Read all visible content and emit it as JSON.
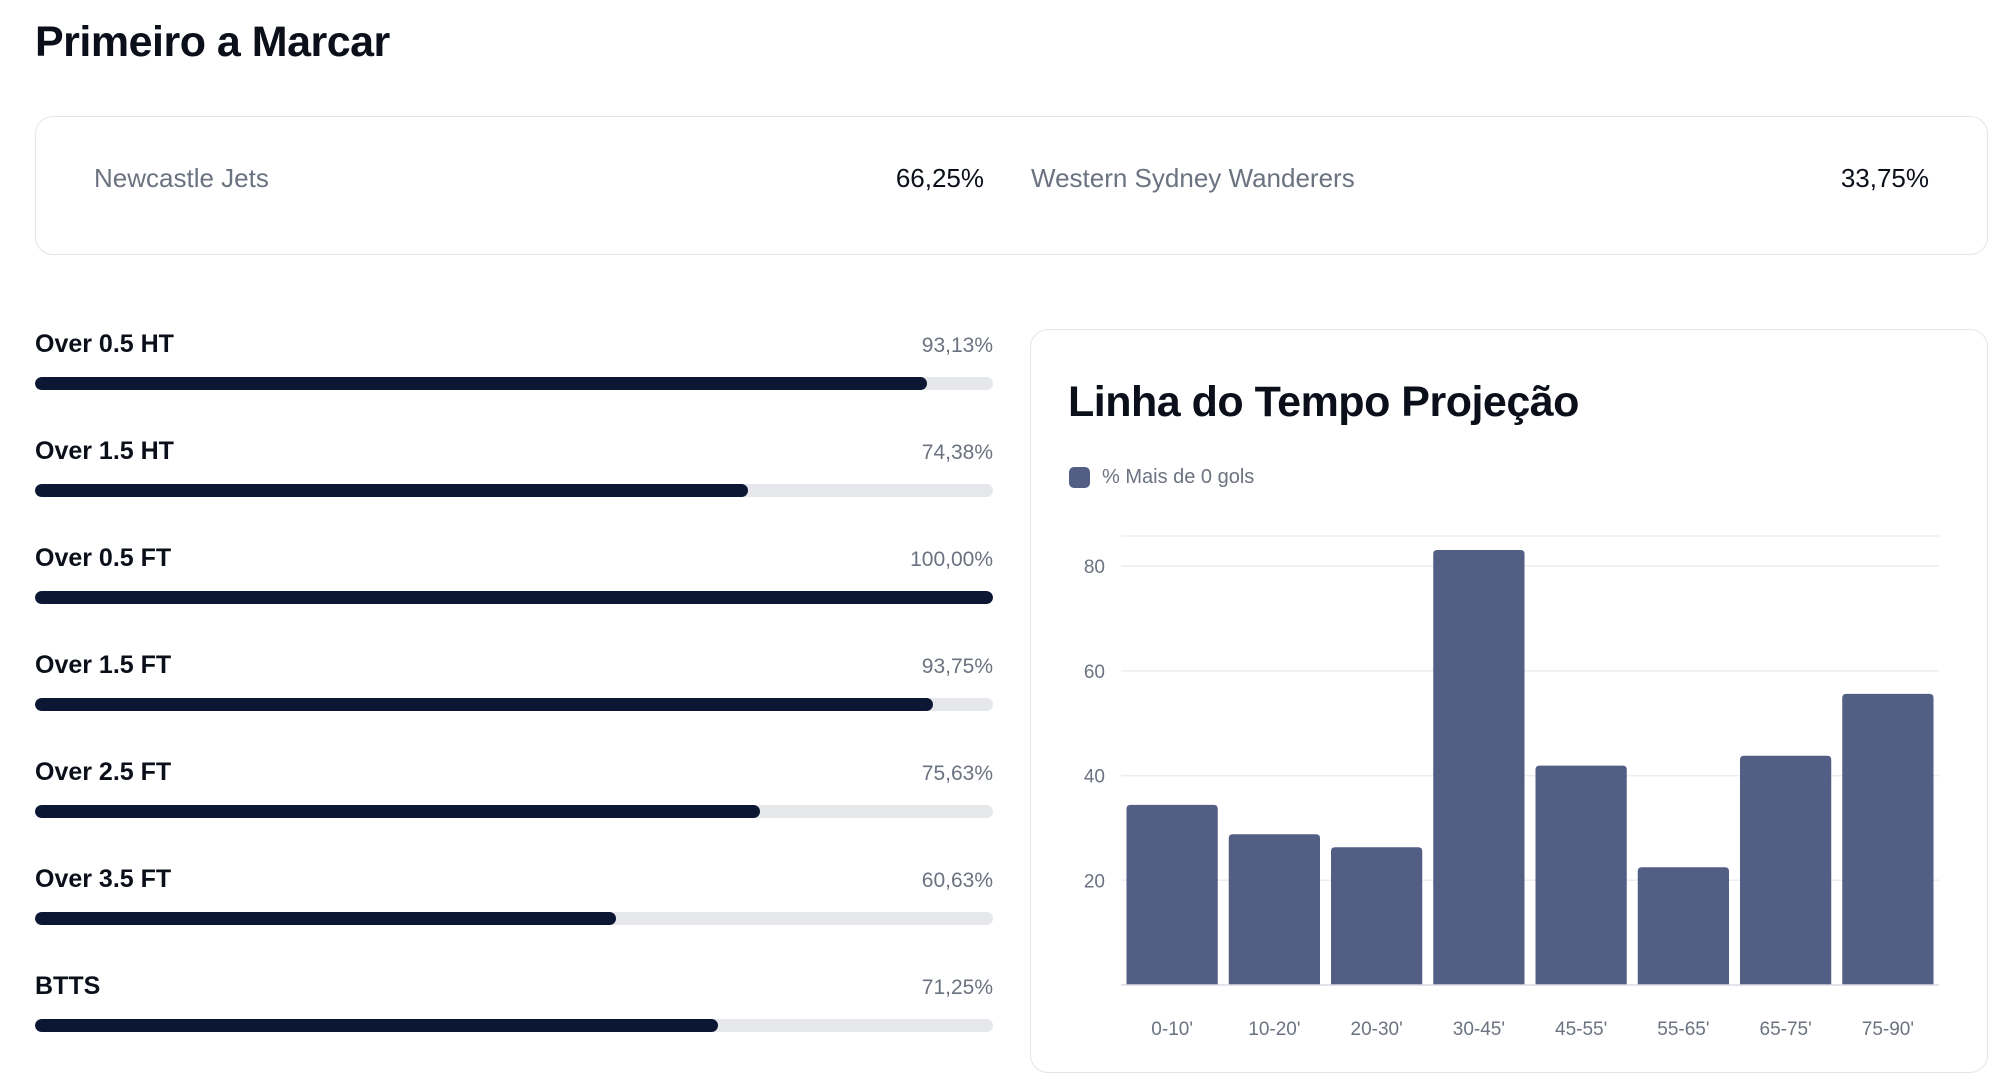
{
  "page_title": "Primeiro a Marcar",
  "first_scorer": {
    "home": {
      "team": "Newcastle Jets",
      "percent": "66,25%"
    },
    "away": {
      "team": "Western Sydney Wanderers",
      "percent": "33,75%"
    }
  },
  "markets": [
    {
      "label": "Over 0.5 HT",
      "percent_text": "93,13%",
      "value": 93.13
    },
    {
      "label": "Over 1.5 HT",
      "percent_text": "74,38%",
      "value": 74.38
    },
    {
      "label": "Over 0.5 FT",
      "percent_text": "100,00%",
      "value": 100.0
    },
    {
      "label": "Over 1.5 FT",
      "percent_text": "93,75%",
      "value": 93.75
    },
    {
      "label": "Over 2.5 FT",
      "percent_text": "75,63%",
      "value": 75.63
    },
    {
      "label": "Over 3.5 FT",
      "percent_text": "60,63%",
      "value": 60.63
    },
    {
      "label": "BTTS",
      "percent_text": "71,25%",
      "value": 71.25
    }
  ],
  "colors": {
    "bar_fill": "#0b1733",
    "bar_track": "#e5e7eb",
    "chart_bar": "#525e83"
  },
  "timeline": {
    "title": "Linha do Tempo Projeção",
    "chart_data": {
      "type": "bar",
      "categories": [
        "0-10'",
        "10-20'",
        "20-30'",
        "30-45'",
        "45-55'",
        "55-65'",
        "65-75'",
        "75-90'"
      ],
      "series": [
        {
          "name": "% Mais de 0 gols",
          "values": [
            34.4,
            28.8,
            26.3,
            83.1,
            41.9,
            22.5,
            43.8,
            55.6
          ]
        }
      ],
      "xlabel": "",
      "ylabel": "",
      "yticks": [
        20,
        40,
        60,
        80
      ],
      "ylim": [
        0,
        85
      ],
      "grid": true,
      "legend": "top-left"
    }
  }
}
